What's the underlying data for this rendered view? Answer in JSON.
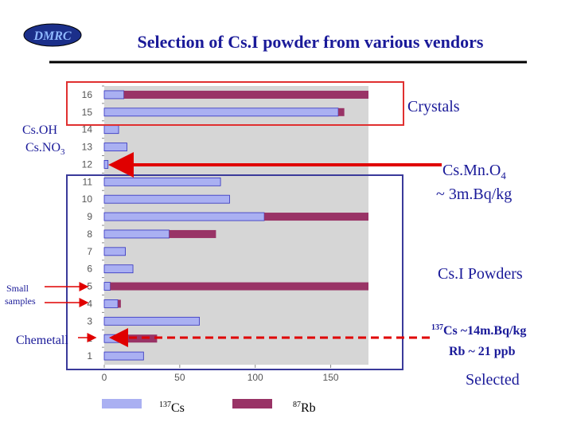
{
  "chart_data": {
    "type": "stacked_barh",
    "title": "Selection of Cs.I powder from various vendors",
    "categories": [
      "1",
      "2",
      "3",
      "4",
      "5",
      "6",
      "7",
      "8",
      "9",
      "10",
      "11",
      "12",
      "13",
      "14",
      "15",
      "16"
    ],
    "series": [
      {
        "name": "Cs",
        "mass_number": "137",
        "color": "#aab0f2",
        "values": [
          26,
          14,
          63,
          9,
          4,
          19,
          14,
          43,
          106,
          83,
          77,
          2.5,
          15,
          9.5,
          155,
          13
        ]
      },
      {
        "name": "Rb",
        "mass_number": "87",
        "color": "#993366",
        "values": [
          0,
          21,
          0,
          2,
          171,
          0,
          0,
          31,
          69,
          0,
          0,
          0,
          0,
          0,
          4,
          162
        ]
      }
    ],
    "xlim": [
      0,
      175
    ],
    "xticks": [
      0,
      50,
      100,
      150
    ],
    "annotations": {
      "logo": "DMRC",
      "crystals": "Crystals",
      "csoh": "Cs.OH",
      "csno3": {
        "text": "Cs.NO",
        "sub": "3"
      },
      "csmno4": {
        "text": "Cs.Mn.O",
        "sub": "4"
      },
      "mnlevel": "~ 3m.Bq/kg",
      "powders": "Cs.I Powders",
      "small": [
        "Small",
        "samples"
      ],
      "chemetall": "Chemetall",
      "selected_cs": {
        "sup": "137",
        "text": "Cs ~14m.Bq/kg"
      },
      "selected_rb": "Rb ~ 21 ppb",
      "selected": "Selected"
    }
  }
}
